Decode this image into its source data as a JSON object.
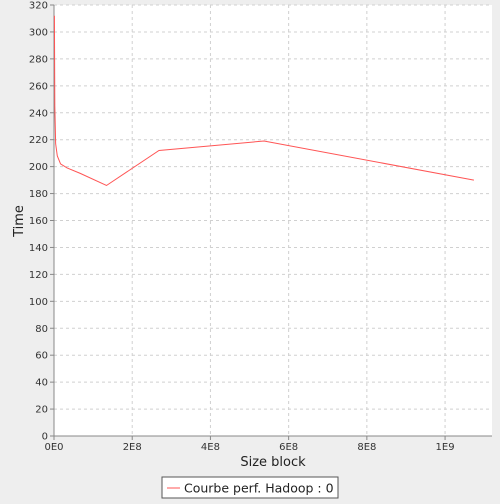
{
  "chart_data": {
    "type": "line",
    "xlabel": "Size block",
    "ylabel": "Time",
    "xlim": [
      0,
      1120000000
    ],
    "ylim": [
      0,
      320
    ],
    "x_ticks": [
      0,
      200000000,
      400000000,
      600000000,
      800000000,
      1000000000
    ],
    "x_tick_labels": [
      "0E0",
      "2E8",
      "4E8",
      "6E8",
      "8E8",
      "1E9"
    ],
    "y_ticks": [
      0,
      20,
      40,
      60,
      80,
      100,
      120,
      140,
      160,
      180,
      200,
      220,
      240,
      260,
      280,
      300,
      320
    ],
    "grid": true,
    "legend_position": "bottom",
    "series": [
      {
        "name": "Courbe perf. Hadoop : 0",
        "color": "#ff5555",
        "x": [
          1048576,
          2097152,
          4194304,
          8388608,
          16777216,
          33554432,
          67108864,
          134217728,
          268435456,
          536870912,
          1073741824
        ],
        "y": [
          312,
          245,
          217,
          208,
          202,
          199,
          195,
          186,
          212,
          219,
          190
        ]
      }
    ]
  }
}
